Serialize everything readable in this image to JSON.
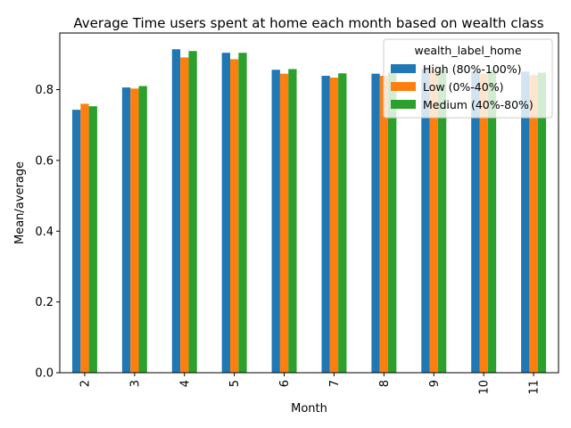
{
  "chart_data": {
    "type": "bar",
    "title": "Average Time users spent at home each month based on wealth class",
    "xlabel": "Month",
    "ylabel": "Mean/average",
    "categories": [
      "2",
      "3",
      "4",
      "5",
      "6",
      "7",
      "8",
      "9",
      "10",
      "11"
    ],
    "ylim": [
      0,
      0.96
    ],
    "yticks": [
      "0.0",
      "0.2",
      "0.4",
      "0.6",
      "0.8"
    ],
    "grid": false,
    "legend": {
      "title": "wealth_label_home",
      "placement": "upper-right"
    },
    "series": [
      {
        "name": "High (80%-100%)",
        "color": "#1f77b4",
        "values": [
          0.743,
          0.806,
          0.914,
          0.904,
          0.856,
          0.839,
          0.845,
          0.858,
          0.852,
          0.851
        ]
      },
      {
        "name": "Low (0%-40%)",
        "color": "#ff7f0e",
        "values": [
          0.76,
          0.803,
          0.891,
          0.886,
          0.845,
          0.834,
          0.839,
          0.853,
          0.845,
          0.841
        ]
      },
      {
        "name": "Medium (40%-80%)",
        "color": "#2ca02c",
        "values": [
          0.753,
          0.81,
          0.909,
          0.904,
          0.858,
          0.846,
          0.848,
          0.858,
          0.854,
          0.848
        ]
      }
    ]
  }
}
